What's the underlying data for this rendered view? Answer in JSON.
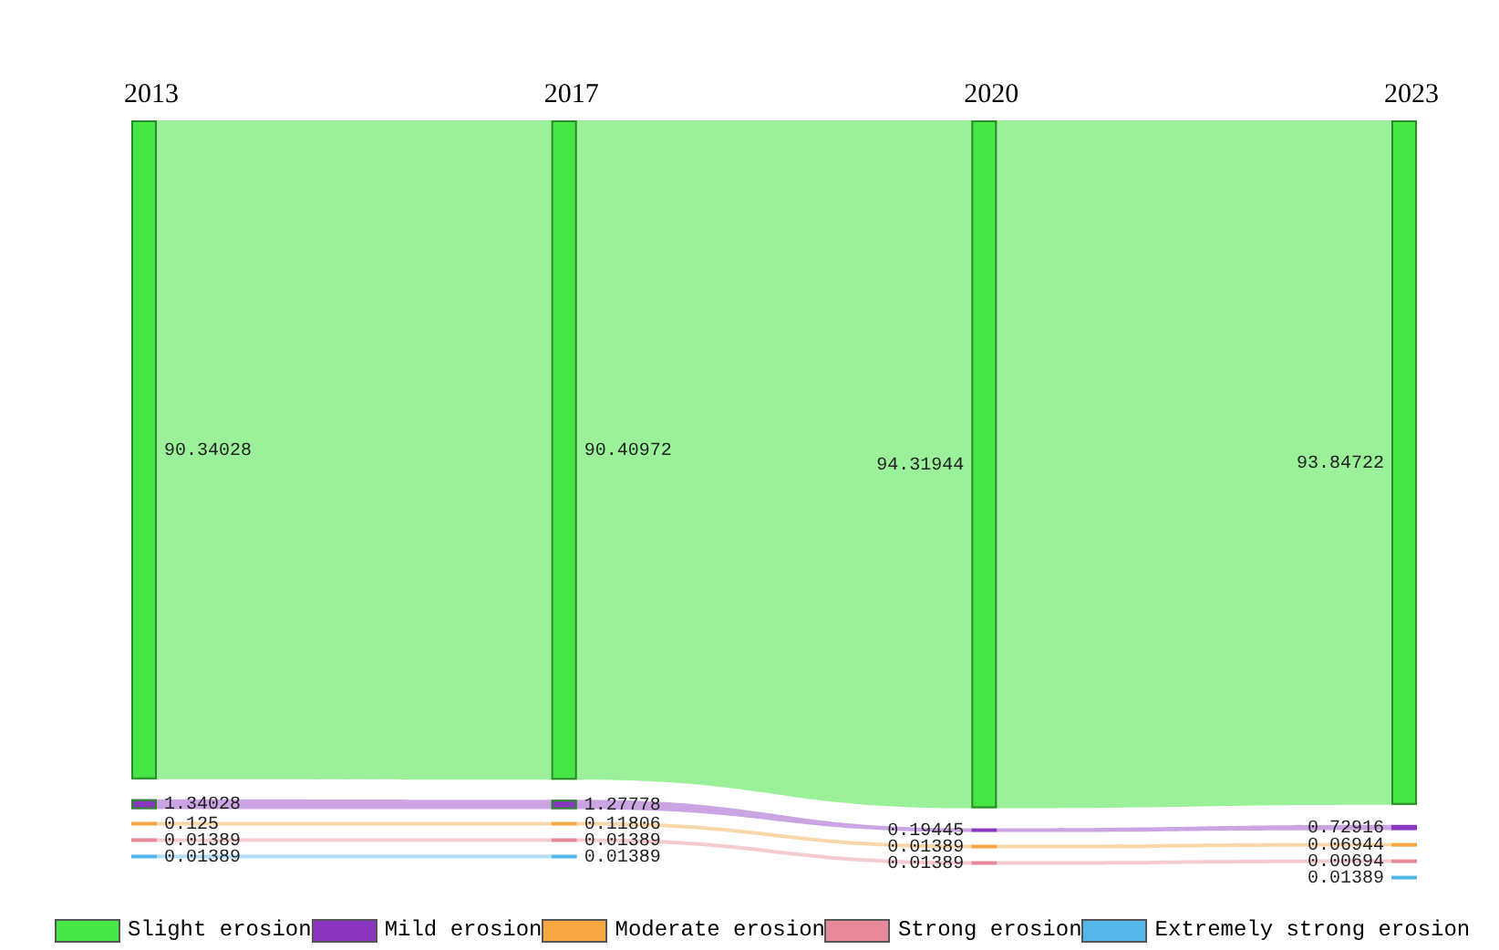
{
  "chart_data": {
    "type": "other",
    "categories": [
      "2013",
      "2017",
      "2020",
      "2023"
    ],
    "series": [
      {
        "name": "Slight erosion",
        "color": "#47e647",
        "values": [
          90.34028,
          90.40972,
          94.31944,
          93.84722
        ]
      },
      {
        "name": "Mild erosion",
        "color": "#8a36c0",
        "values": [
          1.34028,
          1.27778,
          0.19445,
          0.72916
        ]
      },
      {
        "name": "Moderate erosion",
        "color": "#f5a742",
        "values": [
          0.125,
          0.11806,
          0.01389,
          0.06944
        ]
      },
      {
        "name": "Strong erosion",
        "color": "#e8899a",
        "values": [
          0.01389,
          0.01389,
          0.01389,
          0.00694
        ]
      },
      {
        "name": "Extremely strong erosion",
        "color": "#55b8ea",
        "values": [
          0.01389,
          0.01389,
          null,
          0.01389
        ]
      }
    ],
    "legend": "bottom",
    "data_labels": true
  }
}
